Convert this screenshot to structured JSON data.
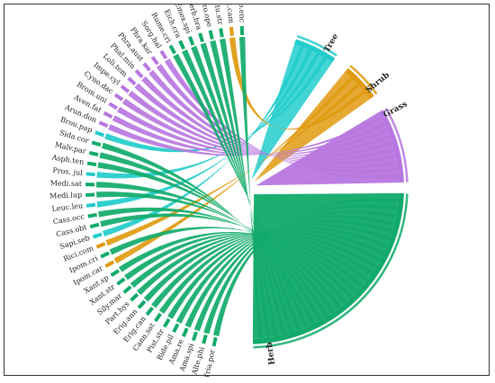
{
  "diagram": {
    "type": "chord",
    "groups": [
      {
        "id": "tree",
        "label": "Tree",
        "color": "#22cccc"
      },
      {
        "id": "shrub",
        "label": "Shrub",
        "color": "#e09a10"
      },
      {
        "id": "grass",
        "label": "Grass",
        "color": "#b877e0"
      },
      {
        "id": "herb",
        "label": "Herb",
        "color": "#11aa6a"
      }
    ],
    "species": [
      {
        "label": "Tria.por",
        "group": "herb"
      },
      {
        "label": "Alte.phi",
        "group": "herb"
      },
      {
        "label": "Ama.spi",
        "group": "herb"
      },
      {
        "label": "Ama.re",
        "group": "herb"
      },
      {
        "label": "Bide.pil",
        "group": "herb"
      },
      {
        "label": "Pist.str",
        "group": "herb"
      },
      {
        "label": "Cann.sat",
        "group": "herb"
      },
      {
        "label": "Erig.can",
        "group": "herb"
      },
      {
        "label": "Erig.ann",
        "group": "herb"
      },
      {
        "label": "Part.hys",
        "group": "herb"
      },
      {
        "label": "Sily.mar",
        "group": "herb"
      },
      {
        "label": "Xant.str",
        "group": "herb"
      },
      {
        "label": "Xant.sp",
        "group": "herb"
      },
      {
        "label": "Ipom.car",
        "group": "shrub"
      },
      {
        "label": "Ipom.cri",
        "group": "herb"
      },
      {
        "label": "Rici.com",
        "group": "shrub"
      },
      {
        "label": "Sapi.seb",
        "group": "tree"
      },
      {
        "label": "Cass.obt",
        "group": "herb"
      },
      {
        "label": "Cass.occ",
        "group": "herb"
      },
      {
        "label": "Leuc.leu",
        "group": "tree"
      },
      {
        "label": "Medi.lup",
        "group": "herb"
      },
      {
        "label": "Medi.sat",
        "group": "herb"
      },
      {
        "label": "Pros. jul",
        "group": "tree"
      },
      {
        "label": "Asph.ten",
        "group": "herb"
      },
      {
        "label": "Malv.par",
        "group": "herb"
      },
      {
        "label": "Sida.cor",
        "group": "herb"
      },
      {
        "label": "Brou.pap",
        "group": "tree"
      },
      {
        "label": "Arun.don",
        "group": "grass"
      },
      {
        "label": "Aven.fat",
        "group": "grass"
      },
      {
        "label": "Brom.uni",
        "group": "grass"
      },
      {
        "label": "Cyno.dac",
        "group": "grass"
      },
      {
        "label": "Impe.cyl",
        "group": "grass"
      },
      {
        "label": "Loli.tem",
        "group": "grass"
      },
      {
        "label": "Phal.min",
        "group": "grass"
      },
      {
        "label": "Phra.aust",
        "group": "grass"
      },
      {
        "label": "Phra.kar",
        "group": "grass"
      },
      {
        "label": "Sorg.hal",
        "group": "grass"
      },
      {
        "label": "Rume.cri",
        "group": "herb"
      },
      {
        "label": "Eich.cra",
        "group": "herb"
      },
      {
        "label": "Emex.spi",
        "group": "herb"
      },
      {
        "label": "Verb.bra",
        "group": "herb"
      },
      {
        "label": "Vero.ope",
        "group": "herb"
      },
      {
        "label": "Datu.str",
        "group": "herb"
      },
      {
        "label": "Lant.cam",
        "group": "shrub"
      },
      {
        "label": "Verb.enc",
        "group": "herb"
      }
    ]
  }
}
